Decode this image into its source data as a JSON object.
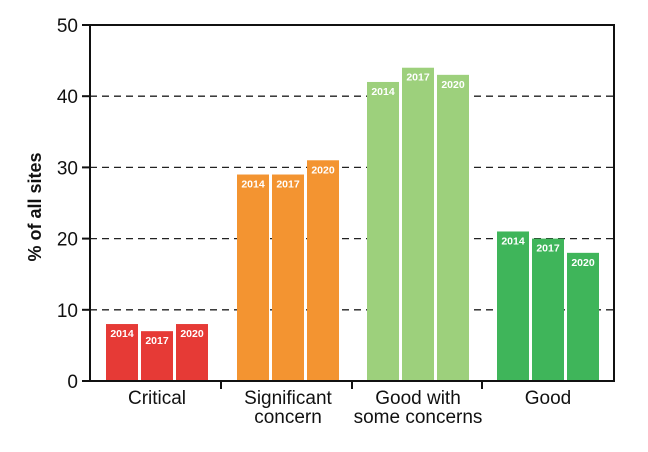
{
  "chart_data": {
    "type": "bar",
    "title": "",
    "xlabel": "",
    "ylabel": "% of all sites",
    "ylim": [
      0,
      50
    ],
    "yticks": [
      0,
      10,
      20,
      30,
      40,
      50
    ],
    "grid": "horizontal dashed",
    "categories": [
      {
        "label": [
          "Critical"
        ],
        "color": "#e63a36",
        "bars": [
          {
            "year": "2014",
            "value": 8
          },
          {
            "year": "2017",
            "value": 7
          },
          {
            "year": "2020",
            "value": 8
          }
        ]
      },
      {
        "label": [
          "Significant",
          "concern"
        ],
        "color": "#f39431",
        "bars": [
          {
            "year": "2014",
            "value": 29
          },
          {
            "year": "2017",
            "value": 29
          },
          {
            "year": "2020",
            "value": 31
          }
        ]
      },
      {
        "label": [
          "Good with",
          "some concerns"
        ],
        "color": "#9dd07c",
        "bars": [
          {
            "year": "2014",
            "value": 42
          },
          {
            "year": "2017",
            "value": 44
          },
          {
            "year": "2020",
            "value": 43
          }
        ]
      },
      {
        "label": [
          "Good"
        ],
        "color": "#3fb55a",
        "bars": [
          {
            "year": "2014",
            "value": 21
          },
          {
            "year": "2017",
            "value": 20
          },
          {
            "year": "2020",
            "value": 18
          }
        ]
      }
    ]
  }
}
